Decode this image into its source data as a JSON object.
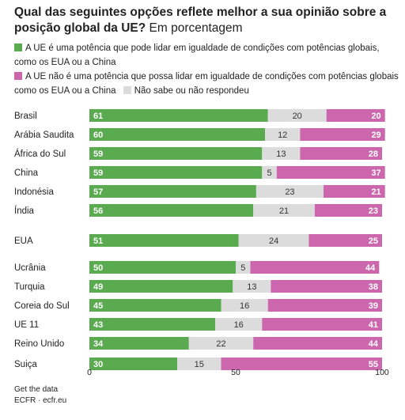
{
  "header": {
    "title_bold": "Qual das seguintes opções reflete melhor a sua opinião sobre a posição global da UE?",
    "title_rest": "Em porcentagem"
  },
  "legend": {
    "item1": "A UE é uma potência que pode lidar em igualdade de condições com potências globais, como os EUA ou a China",
    "item2": "A UE não é uma potência que possa lidar em igualdade de condições com potências globais como os EUA ou a China",
    "item3": "Não sabe ou não respondeu"
  },
  "footer": {
    "line1": "Get the data",
    "line2": "ECFR · ecfr.eu"
  },
  "chart_data": {
    "type": "bar",
    "orientation": "horizontal",
    "stacked": true,
    "xlim": [
      0,
      100
    ],
    "xticks": [
      "0",
      "50",
      "100"
    ],
    "categories": [
      "Brasil",
      "Arábia Saudita",
      "África do Sul",
      "China",
      "Indonésia",
      "Índia",
      "EUA",
      "Ucrânia",
      "Turquia",
      "Coreia do Sul",
      "UE 11",
      "Reino Unido",
      "Suiça"
    ],
    "series": [
      {
        "name": "A UE é uma potência que pode lidar em igualdade de condições com potências globais, como os EUA ou a China",
        "color": "#5aab4f",
        "values": [
          61,
          60,
          59,
          59,
          57,
          56,
          51,
          50,
          49,
          45,
          43,
          34,
          30
        ]
      },
      {
        "name": "Não sabe ou não respondeu",
        "color": "#dcdcdc",
        "values": [
          20,
          12,
          13,
          5,
          23,
          21,
          24,
          5,
          13,
          16,
          16,
          22,
          15
        ]
      },
      {
        "name": "A UE não é uma potência que possa lidar em igualdade de condições com potências globais como os EUA ou a China",
        "color": "#cc66ad",
        "values": [
          20,
          29,
          28,
          37,
          21,
          23,
          25,
          44,
          38,
          39,
          41,
          44,
          55
        ]
      }
    ]
  }
}
